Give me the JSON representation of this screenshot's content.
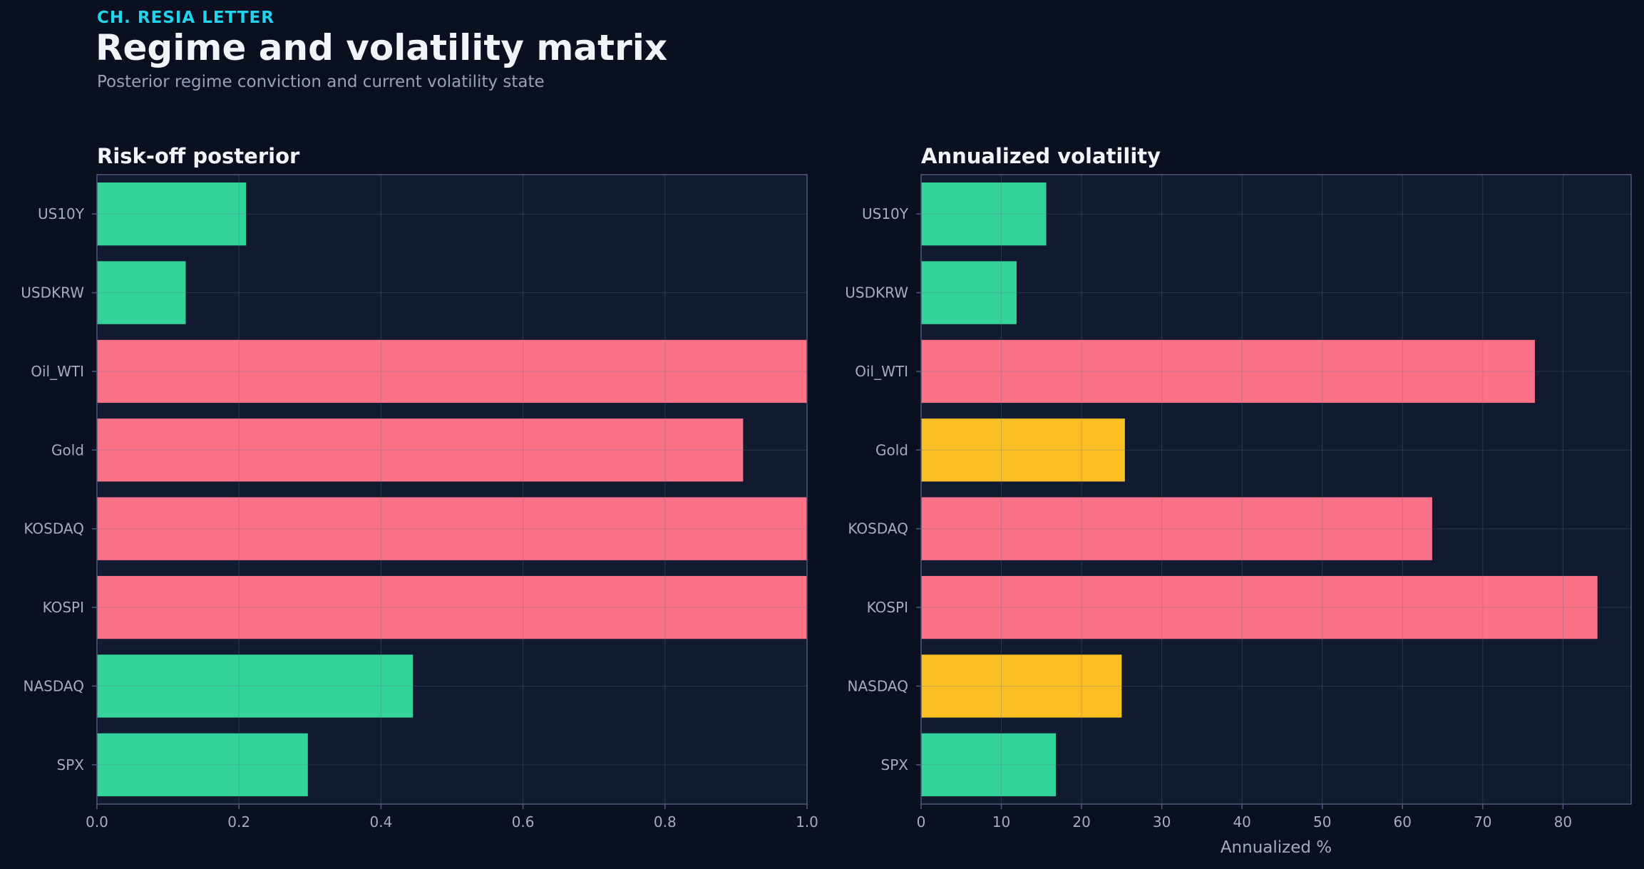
{
  "header": {
    "kicker": "CH. RESIA LETTER",
    "title": "Regime and volatility matrix",
    "subtitle": "Posterior regime conviction and current volatility state"
  },
  "colors": {
    "background": "#0a1020",
    "plot_bg": "#111a2e",
    "risk_on": "#34d399",
    "risk_off": "#fb7185",
    "neutral": "#fbbf24",
    "grid": "#2a3650",
    "axis": "#4b587a",
    "text": "#a3adc2"
  },
  "chart_data": [
    {
      "type": "bar",
      "orientation": "horizontal",
      "title": "Risk-off posterior",
      "xlabel": "",
      "ylabel": "",
      "xlim": [
        0,
        1.0
      ],
      "xticks": [
        "0.0",
        "0.2",
        "0.4",
        "0.6",
        "0.8",
        "1.0"
      ],
      "grid": true,
      "categories": [
        "US10Y",
        "USDKRW",
        "Oil_WTI",
        "Gold",
        "KOSDAQ",
        "KOSPI",
        "NASDAQ",
        "SPX"
      ],
      "values": [
        0.21,
        0.125,
        1.0,
        0.91,
        1.0,
        1.0,
        0.445,
        0.297
      ],
      "bar_colors": [
        "risk_on",
        "risk_on",
        "risk_off",
        "risk_off",
        "risk_off",
        "risk_off",
        "risk_on",
        "risk_on"
      ]
    },
    {
      "type": "bar",
      "orientation": "horizontal",
      "title": "Annualized volatility",
      "xlabel": "Annualized %",
      "ylabel": "",
      "xlim": [
        0,
        88.5
      ],
      "xticks": [
        "0",
        "10",
        "20",
        "30",
        "40",
        "50",
        "60",
        "70",
        "80"
      ],
      "grid": true,
      "categories": [
        "US10Y",
        "USDKRW",
        "Oil_WTI",
        "Gold",
        "KOSDAQ",
        "KOSPI",
        "NASDAQ",
        "SPX"
      ],
      "values": [
        15.6,
        11.9,
        76.5,
        25.4,
        63.7,
        84.3,
        25.0,
        16.8
      ],
      "bar_colors": [
        "risk_on",
        "risk_on",
        "risk_off",
        "neutral",
        "risk_off",
        "risk_off",
        "neutral",
        "risk_on"
      ]
    }
  ]
}
